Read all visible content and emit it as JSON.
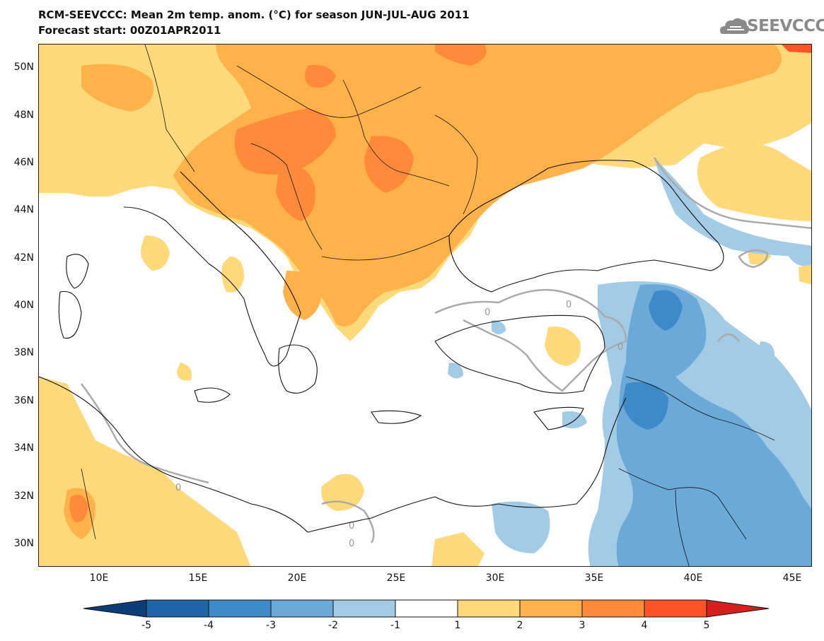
{
  "title": {
    "line1": "RCM-SEEVCCC: Mean 2m temp. anom. (°C) for season JUN-JUL-AUG 2011",
    "line2": "Forecast start: 00Z01APR2011"
  },
  "logo": {
    "text": "SEEVCCC",
    "icon": "cloud-logo-icon"
  },
  "map": {
    "latitude_labels": [
      "50N",
      "48N",
      "46N",
      "44N",
      "42N",
      "40N",
      "38N",
      "36N",
      "34N",
      "32N",
      "30N"
    ],
    "longitude_labels": [
      "10E",
      "15E",
      "20E",
      "25E",
      "30E",
      "35E",
      "40E",
      "45E"
    ],
    "contour_label": "0"
  },
  "colorbar": {
    "labels": [
      "-5",
      "-4",
      "-3",
      "-2",
      "-1",
      "1",
      "2",
      "3",
      "4",
      "5"
    ],
    "colors": [
      "#0d3e78",
      "#1f66a8",
      "#3e8ac9",
      "#6aa9d8",
      "#a3cbe6",
      "#ffffff",
      "#ffd97a",
      "#ffb14a",
      "#ff8a3a",
      "#ff5229",
      "#d71f1f"
    ]
  },
  "colors": {
    "warm_1": "#ffd97a",
    "warm_2": "#ffb14a",
    "warm_3": "#ff8a3a",
    "warm_4": "#ff5229",
    "cool_1": "#a3cbe6",
    "cool_2": "#6aa9d8",
    "cool_3": "#3e8ac9",
    "contour": "#aaaaaa",
    "border": "#111111"
  }
}
